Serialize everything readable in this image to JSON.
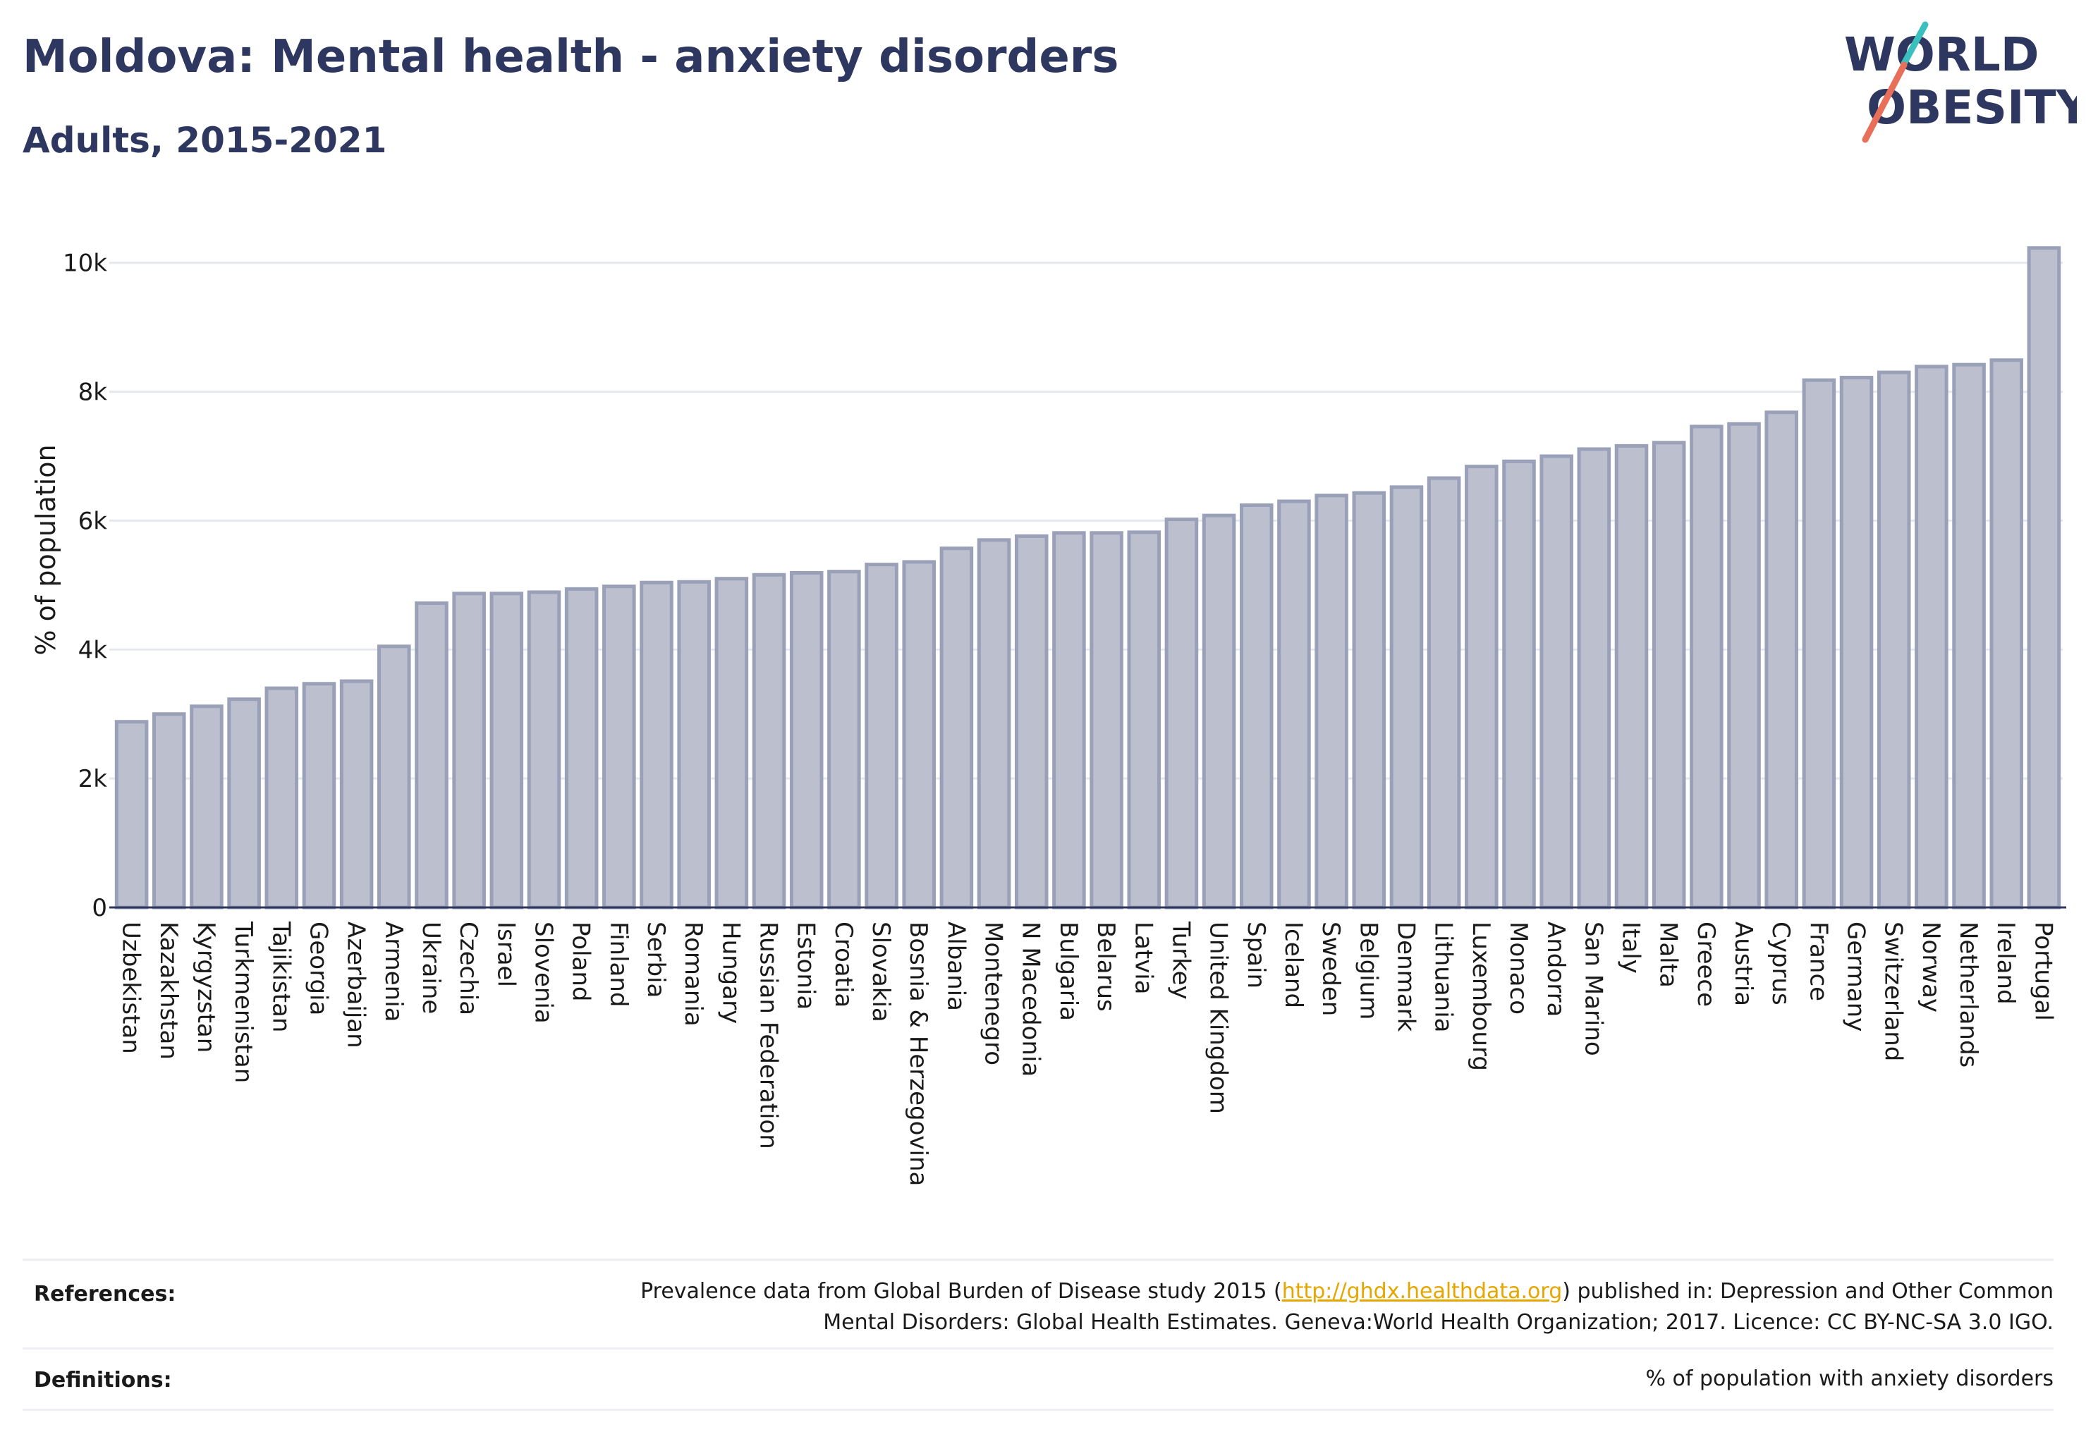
{
  "header": {
    "title": "Moldova: Mental health - anxiety disorders",
    "subtitle": "Adults, 2015-2021"
  },
  "logo": {
    "line1": "WORLD",
    "line2": "OBESITY"
  },
  "colors": {
    "title": "#2d3760",
    "bar_fill": "#bcc0ce",
    "bar_stroke": "#9aa0b8",
    "grid": "#e6e8ef",
    "link": "#e6a600",
    "logo_teal": "#3bbfbf",
    "logo_coral": "#e8705a"
  },
  "chart_data": {
    "type": "bar",
    "ylabel": "% of population",
    "ylim": [
      0,
      10500
    ],
    "yticks": [
      0,
      2000,
      4000,
      6000,
      8000,
      10000
    ],
    "ytick_labels": [
      "0",
      "2k",
      "4k",
      "6k",
      "8k",
      "10k"
    ],
    "grid": true,
    "categories": [
      "Uzbekistan",
      "Kazakhstan",
      "Kyrgyzstan",
      "Turkmenistan",
      "Tajikistan",
      "Georgia",
      "Azerbaijan",
      "Armenia",
      "Ukraine",
      "Czechia",
      "Israel",
      "Slovenia",
      "Poland",
      "Finland",
      "Serbia",
      "Romania",
      "Hungary",
      "Russian Federation",
      "Estonia",
      "Croatia",
      "Slovakia",
      "Bosnia & Herzegovina",
      "Albania",
      "Montenegro",
      "N Macedonia",
      "Bulgaria",
      "Belarus",
      "Latvia",
      "Turkey",
      "United Kingdom",
      "Spain",
      "Iceland",
      "Sweden",
      "Belgium",
      "Denmark",
      "Lithuania",
      "Luxembourg",
      "Monaco",
      "Andorra",
      "San Marino",
      "Italy",
      "Malta",
      "Greece",
      "Austria",
      "Cyprus",
      "France",
      "Germany",
      "Switzerland",
      "Norway",
      "Netherlands",
      "Ireland",
      "Portugal"
    ],
    "values": [
      2880,
      3000,
      3120,
      3230,
      3400,
      3470,
      3510,
      4050,
      4720,
      4870,
      4870,
      4890,
      4940,
      4980,
      5040,
      5050,
      5100,
      5160,
      5190,
      5210,
      5320,
      5360,
      5570,
      5700,
      5760,
      5810,
      5810,
      5820,
      6020,
      6080,
      6240,
      6300,
      6390,
      6430,
      6520,
      6660,
      6840,
      6920,
      7000,
      7110,
      7160,
      7210,
      7460,
      7500,
      7680,
      8180,
      8220,
      8300,
      8390,
      8420,
      8490,
      10230
    ]
  },
  "footer": {
    "references_label": "References:",
    "references_line1_pre": "Prevalence data from Global Burden of Disease study 2015 (",
    "references_link": "http://ghdx.healthdata.org",
    "references_line1_post": ") published in: Depression and Other Common",
    "references_line2": "Mental Disorders: Global Health Estimates. Geneva:World Health Organization; 2017. Licence: CC BY-NC-SA 3.0 IGO.",
    "definitions_label": "Definitions:",
    "definitions_text": "% of population with anxiety disorders"
  }
}
